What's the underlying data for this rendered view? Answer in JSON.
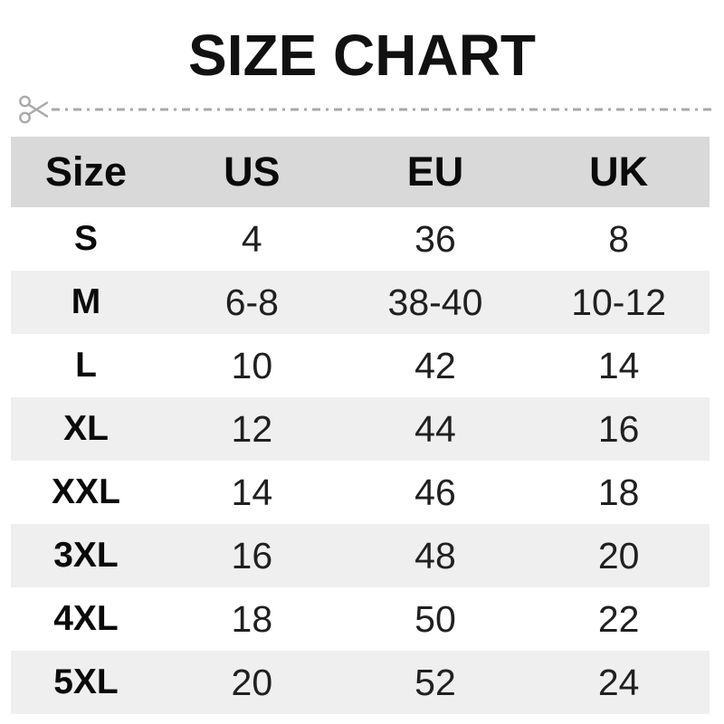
{
  "title": "SIZE CHART",
  "cut_line": {
    "icon": "scissors",
    "color": "#a9a9a9",
    "style": "dash-dot"
  },
  "colors": {
    "header_bg": "#d9d9d9",
    "row_alt_bg": "#efefef",
    "title_text": "#111111",
    "body_text": "#202020"
  },
  "chart_data": {
    "type": "table",
    "title": "SIZE CHART",
    "columns": [
      "Size",
      "US",
      "EU",
      "UK"
    ],
    "rows": [
      [
        "S",
        "4",
        "36",
        "8"
      ],
      [
        "M",
        "6-8",
        "38-40",
        "10-12"
      ],
      [
        "L",
        "10",
        "42",
        "14"
      ],
      [
        "XL",
        "12",
        "44",
        "16"
      ],
      [
        "XXL",
        "14",
        "46",
        "18"
      ],
      [
        "3XL",
        "16",
        "48",
        "20"
      ],
      [
        "4XL",
        "18",
        "50",
        "22"
      ],
      [
        "5XL",
        "20",
        "52",
        "24"
      ]
    ]
  }
}
